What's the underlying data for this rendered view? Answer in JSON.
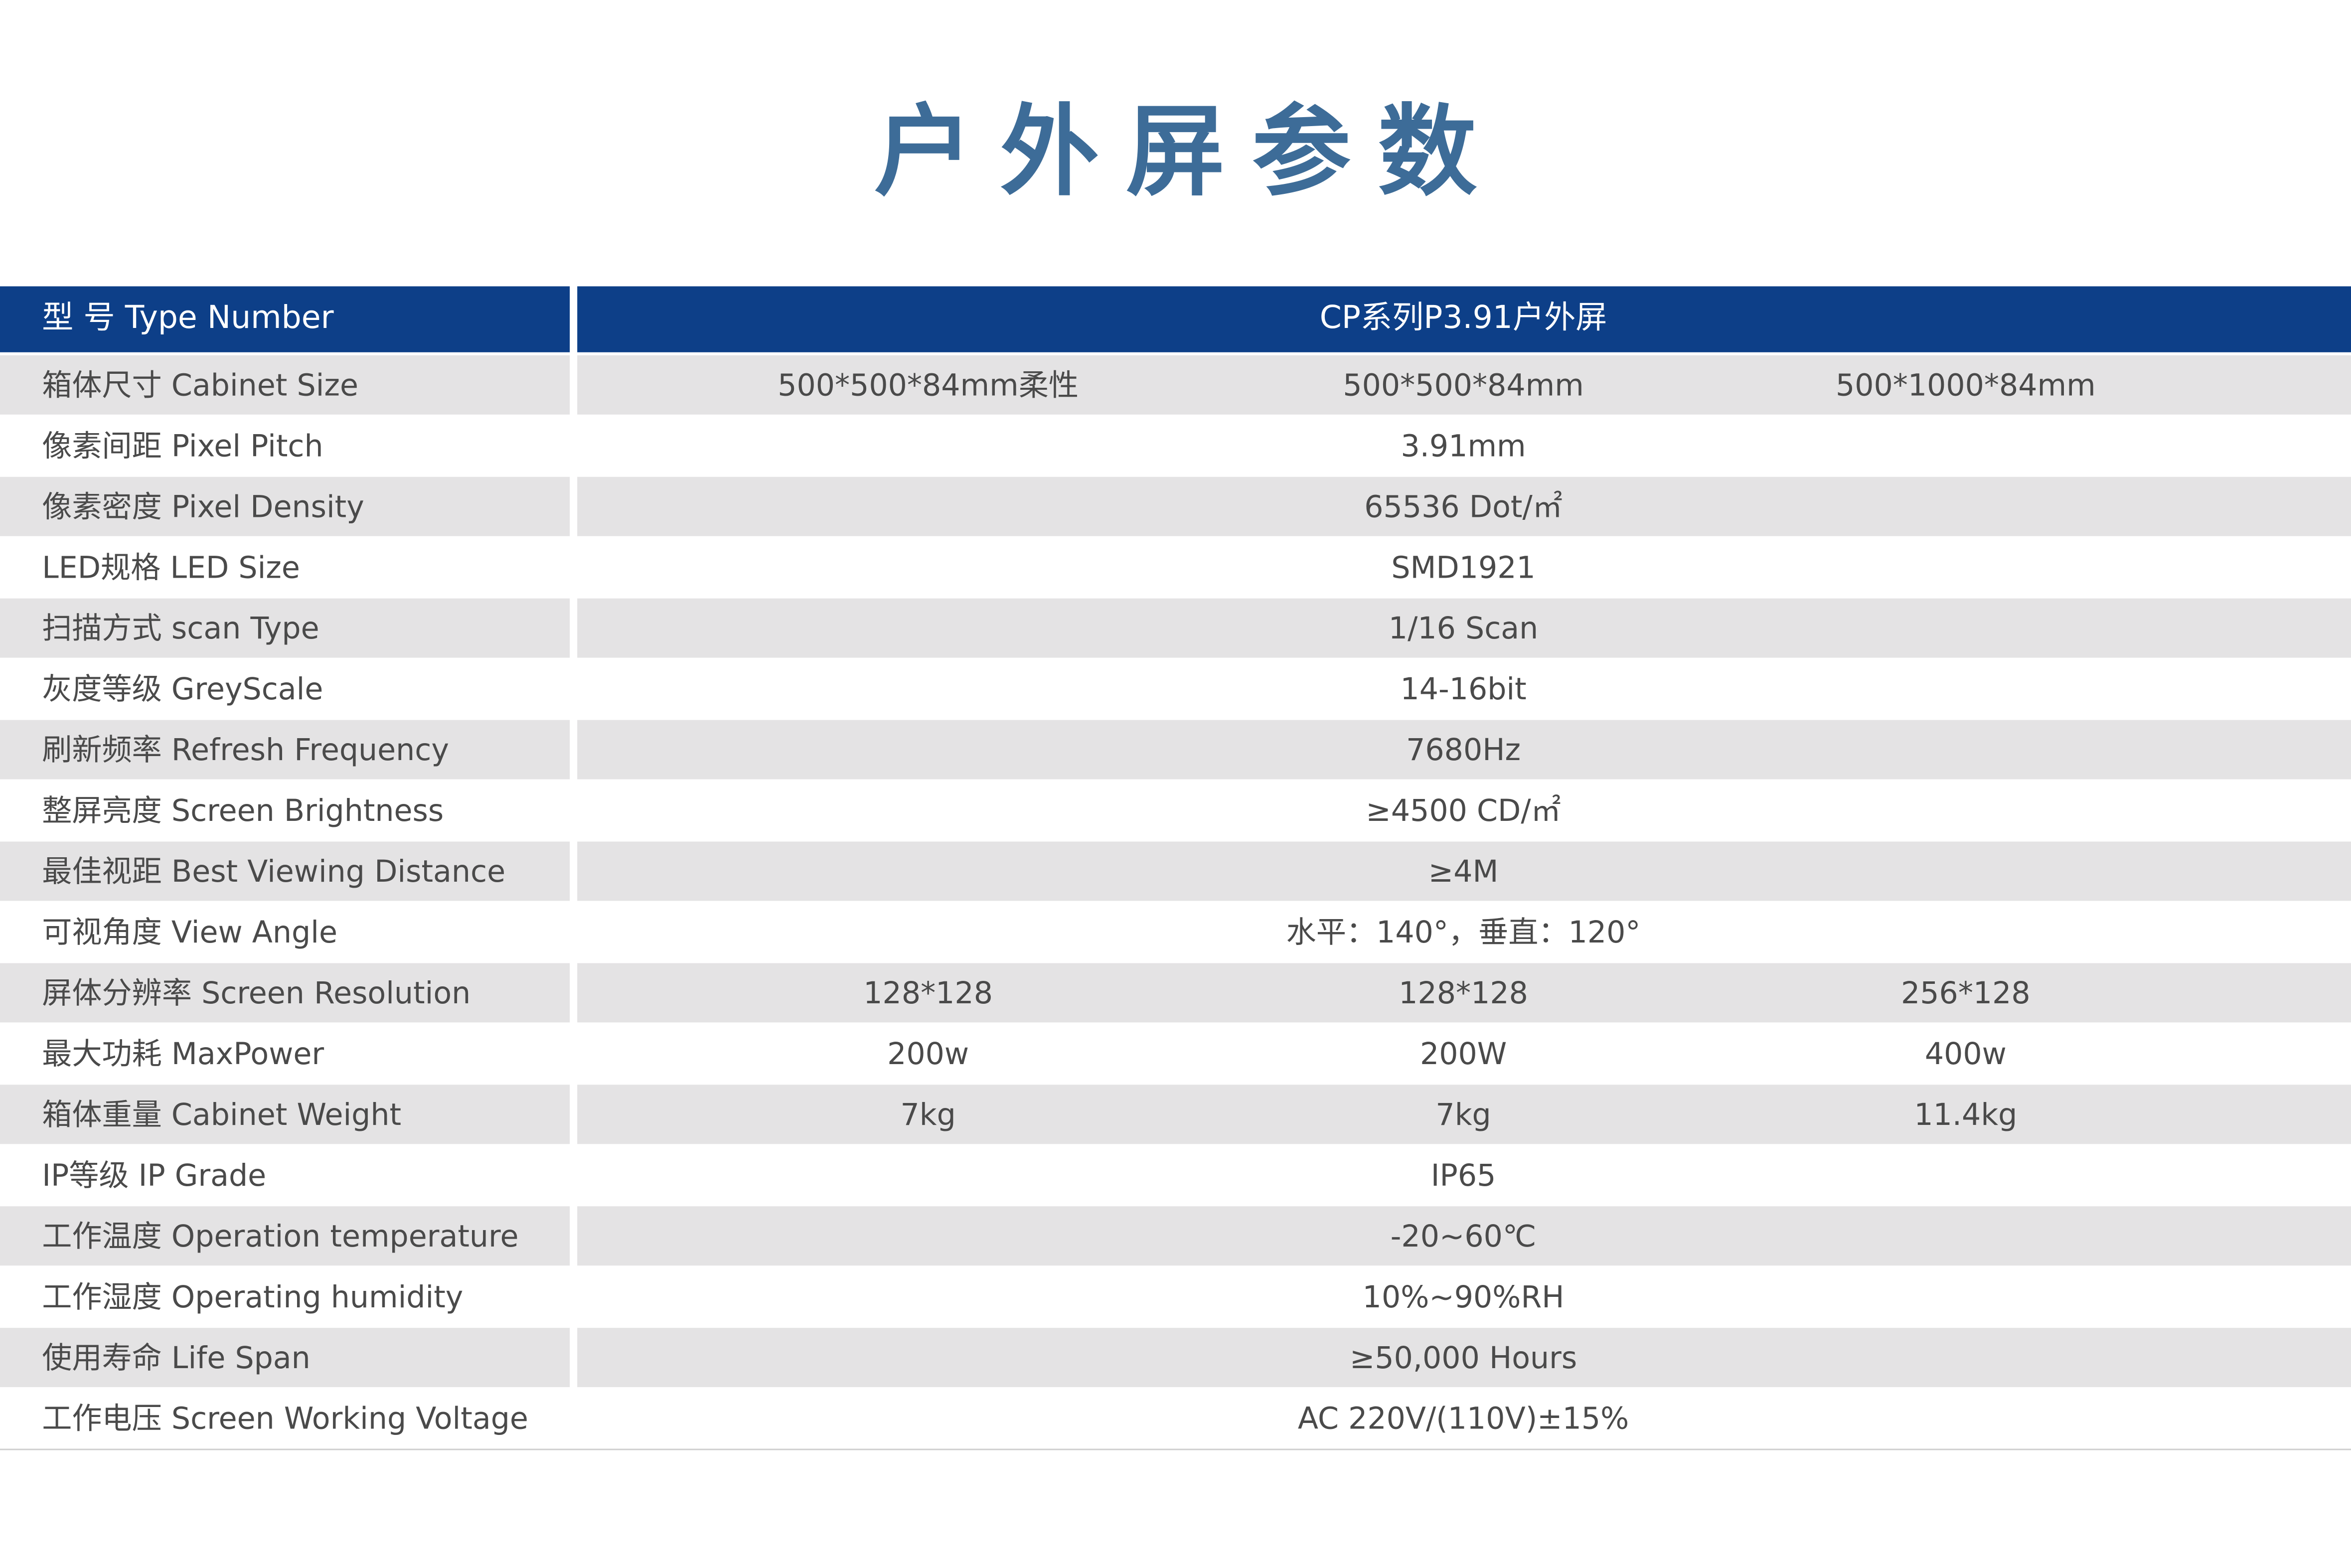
{
  "title": "户外屏参数",
  "table": {
    "header": [
      "型 号 Type Number",
      "CP系列P3.91户外屏"
    ],
    "rows": [
      [
        "箱体尺寸 Cabinet Size",
        "500*500*84mm柔性",
        "500*500*84mm",
        "500*1000*84mm"
      ],
      [
        "像素间距 Pixel Pitch",
        "3.91mm"
      ],
      [
        "像素密度 Pixel Density",
        "65536 Dot/㎡"
      ],
      [
        "LED规格 LED Size",
        "SMD1921"
      ],
      [
        "扫描方式 scan Type",
        "1/16 Scan"
      ],
      [
        "灰度等级 GreyScale",
        "14-16bit"
      ],
      [
        "刷新频率 Refresh Frequency",
        "7680Hz"
      ],
      [
        "整屏亮度 Screen Brightness",
        "≥4500 CD/㎡"
      ],
      [
        "最佳视距 Best Viewing Distance",
        "≥4M"
      ],
      [
        "可视角度 View Angle",
        "水平：140°，垂直：120°"
      ],
      [
        "屏体分辨率 Screen Resolution",
        "128*128",
        "128*128",
        "256*128"
      ],
      [
        "最大功耗 MaxPower",
        "200w",
        "200W",
        "400w"
      ],
      [
        "箱体重量 Cabinet Weight",
        "7kg",
        "7kg",
        "11.4kg"
      ],
      [
        "IP等级 IP Grade",
        "IP65"
      ],
      [
        "工作温度 Operation temperature",
        "-20~60℃"
      ],
      [
        "工作湿度 Operating humidity",
        "10%~90%RH"
      ],
      [
        "使用寿命 Life Span",
        "≥50,000 Hours"
      ],
      [
        "工作电压 Screen Working Voltage",
        "AC 220V/(110V)±15%"
      ]
    ]
  }
}
